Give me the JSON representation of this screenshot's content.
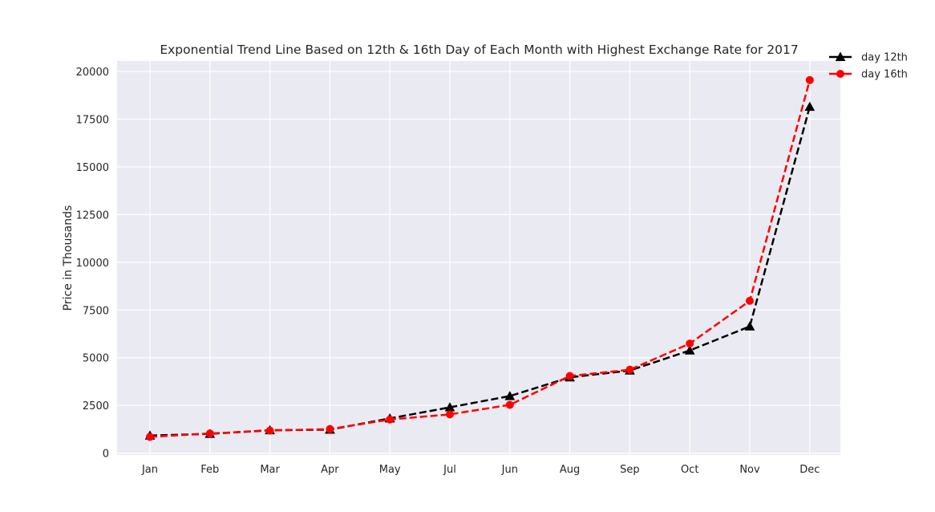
{
  "chart_data": {
    "type": "line",
    "title": "Exponential Trend Line Based on 12th & 16th Day of Each Month with Highest Exchange Rate for 2017",
    "xlabel": "",
    "ylabel": "Price in Thousands",
    "categories": [
      "Jan",
      "Feb",
      "Mar",
      "Apr",
      "May",
      "Jul",
      "Jun",
      "Aug",
      "Sep",
      "Oct",
      "Nov",
      "Dec"
    ],
    "ylim": [
      -100,
      20550
    ],
    "yticks": [
      0,
      2500,
      5000,
      7500,
      10000,
      12500,
      15000,
      17500,
      20000
    ],
    "ytick_labels": [
      "0",
      "2500",
      "5000",
      "7500",
      "10000",
      "12500",
      "15000",
      "17500",
      "20000"
    ],
    "grid": true,
    "legend_position": "top-right, outside plot",
    "background_color": "#eaeaf2",
    "series": [
      {
        "name": "day 12th",
        "color": "#000000",
        "marker": "triangle-up",
        "linestyle": "dashed",
        "values": [
          920,
          1010,
          1200,
          1230,
          1820,
          2400,
          2990,
          3970,
          4330,
          5380,
          6640,
          18150
        ]
      },
      {
        "name": "day 16th",
        "color": "#ff0000",
        "marker": "circle",
        "linestyle": "dashed",
        "values": [
          850,
          1030,
          1180,
          1260,
          1760,
          2030,
          2530,
          4040,
          4370,
          5740,
          7980,
          19550
        ]
      }
    ]
  }
}
